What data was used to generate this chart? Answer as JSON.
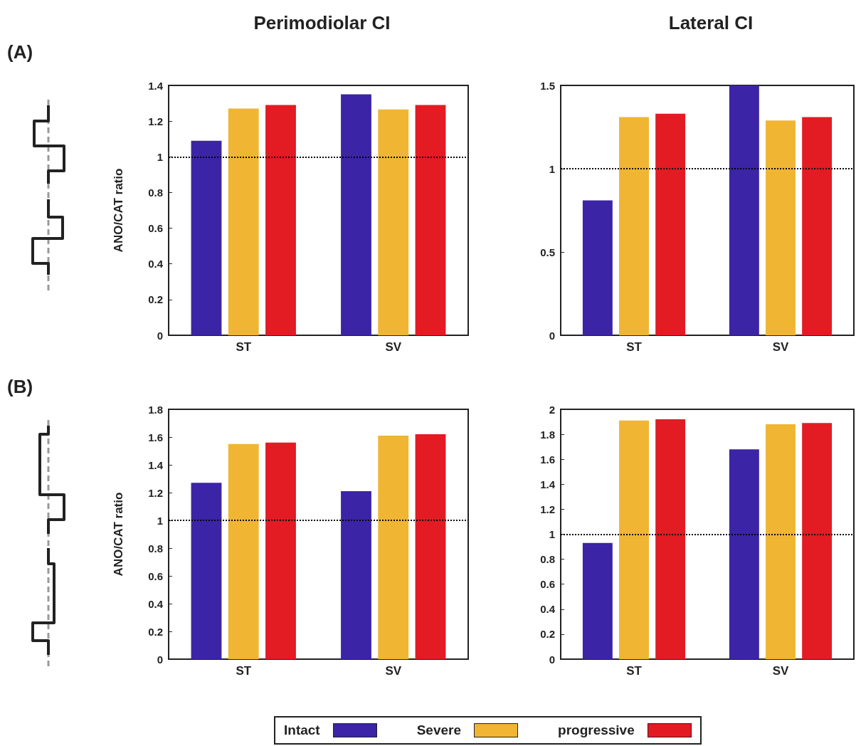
{
  "chart_data": [
    {
      "type": "bar",
      "title": "Perimodiolar CI",
      "ylabel": "ANO/CAT ratio",
      "annotations": [
        "(A)"
      ],
      "categories": [
        "ST",
        "SV"
      ],
      "series": [
        {
          "color": "#3b24a5",
          "values": [
            1.09,
            1.35
          ]
        },
        {
          "color": "#f0b533",
          "values": [
            1.27,
            1.265
          ]
        },
        {
          "color": "#e31b23",
          "values": [
            1.29,
            1.29
          ]
        }
      ],
      "ylim": [
        0,
        1.4
      ],
      "yticks": [
        0,
        0.2,
        0.4,
        0.6,
        0.8,
        1,
        1.2,
        1.4
      ],
      "ref_lines": [
        {
          "axis": "y",
          "value": 1,
          "line_style": "dotted",
          "color": "#000000"
        }
      ],
      "grid": false
    },
    {
      "type": "bar",
      "title": "Lateral CI",
      "categories": [
        "ST",
        "SV"
      ],
      "series": [
        {
          "color": "#3b24a5",
          "values": [
            0.81,
            1.5
          ]
        },
        {
          "color": "#f0b533",
          "values": [
            1.31,
            1.29
          ]
        },
        {
          "color": "#e31b23",
          "values": [
            1.33,
            1.31
          ]
        }
      ],
      "ylim": [
        0,
        1.5
      ],
      "yticks": [
        0,
        0.5,
        1,
        1.5
      ],
      "ref_lines": [
        {
          "axis": "y",
          "value": 1,
          "line_style": "dotted",
          "color": "#000000"
        }
      ],
      "grid": false
    },
    {
      "type": "bar",
      "ylabel": "ANO/CAT ratio",
      "annotations": [
        "(B)"
      ],
      "categories": [
        "ST",
        "SV"
      ],
      "series": [
        {
          "name": "Intact",
          "color": "#3b24a5",
          "values": [
            1.27,
            1.21
          ]
        },
        {
          "name": "Severe",
          "color": "#f0b533",
          "values": [
            1.55,
            1.61
          ]
        },
        {
          "name": "progressive",
          "color": "#e31b23",
          "values": [
            1.56,
            1.62
          ]
        }
      ],
      "ylim": [
        0,
        1.8
      ],
      "yticks": [
        0,
        0.2,
        0.4,
        0.6,
        0.8,
        1,
        1.2,
        1.4,
        1.6,
        1.8
      ],
      "ref_lines": [
        {
          "axis": "y",
          "value": 1,
          "line_style": "dotted",
          "color": "#000000"
        }
      ],
      "grid": false,
      "legend": "bottom"
    },
    {
      "type": "bar",
      "categories": [
        "ST",
        "SV"
      ],
      "series": [
        {
          "color": "#3b24a5",
          "values": [
            0.93,
            1.68
          ]
        },
        {
          "color": "#f0b533",
          "values": [
            1.91,
            1.88
          ]
        },
        {
          "color": "#e31b23",
          "values": [
            1.92,
            1.89
          ]
        }
      ],
      "ylim": [
        0,
        2
      ],
      "yticks": [
        0,
        0.2,
        0.4,
        0.6,
        0.8,
        1,
        1.2,
        1.4,
        1.6,
        1.8,
        2
      ],
      "ref_lines": [
        {
          "axis": "y",
          "value": 1,
          "line_style": "dotted",
          "color": "#000000"
        }
      ],
      "grid": false
    }
  ]
}
